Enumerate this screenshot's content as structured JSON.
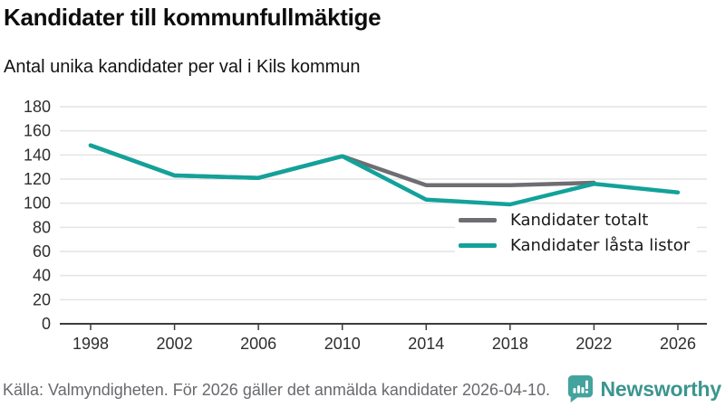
{
  "header": {
    "title": "Kandidater till kommunfullmäktige",
    "subtitle": "Antal unika kandidater per val i Kils kommun"
  },
  "chart_data": {
    "type": "line",
    "x": [
      1998,
      2002,
      2006,
      2010,
      2014,
      2018,
      2022,
      2026
    ],
    "series": [
      {
        "name": "Kandidater totalt",
        "color": "#6e6e72",
        "values": [
          148,
          123,
          121,
          139,
          115,
          115,
          117,
          null
        ]
      },
      {
        "name": "Kandidater låsta listor",
        "color": "#12a29a",
        "values": [
          148,
          123,
          121,
          139,
          103,
          99,
          116,
          109
        ]
      }
    ],
    "ylim": [
      0,
      180
    ],
    "ytick_step": 20,
    "yticks": [
      0,
      20,
      40,
      60,
      80,
      100,
      120,
      140,
      160,
      180
    ],
    "grid": "horizontal",
    "legend_position": "top-right",
    "title": "Kandidater till kommunfullmäktige",
    "xlabel": "",
    "ylabel": ""
  },
  "style": {
    "grid_color": "#e4e4e4",
    "axis_color": "#3c3c3c",
    "tick_label_color": "#2e2e2e",
    "line_width": 4.5
  },
  "footer": {
    "source": "Källa: Valmyndigheten. För 2026 gäller det anmälda kandidater 2026-04-10.",
    "brand": "Newsworthy",
    "brand_color": "#3c958f",
    "icon_color": "#44a39e"
  }
}
